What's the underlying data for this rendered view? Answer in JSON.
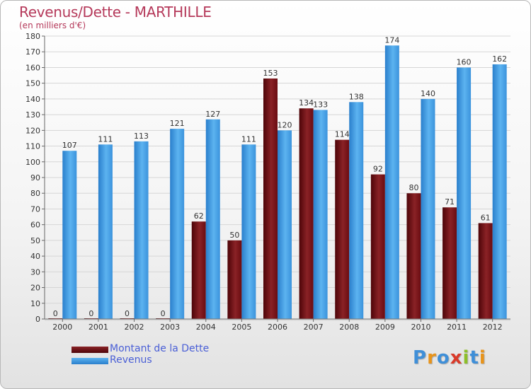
{
  "header": {
    "title": "Revenus/Dette - MARTHILLE",
    "subtitle": "(en milliers d'€)"
  },
  "legend": {
    "items": [
      {
        "label": "Montant de la Dette",
        "color": "#6d0f14"
      },
      {
        "label": "Revenus",
        "color": "#3b9ae0"
      }
    ]
  },
  "logo": {
    "letters": [
      {
        "ch": "P",
        "color": "#3f8fd8"
      },
      {
        "ch": "r",
        "color": "#e8941b"
      },
      {
        "ch": "o",
        "color": "#3f8fd8"
      },
      {
        "ch": "x",
        "color": "#d93a2a"
      },
      {
        "ch": "i",
        "color": "#8dbf2a"
      },
      {
        "ch": "t",
        "color": "#3f8fd8"
      },
      {
        "ch": "i",
        "color": "#e8941b"
      }
    ]
  },
  "chart_data": {
    "type": "bar",
    "title": "Revenus/Dette - MARTHILLE",
    "subtitle": "(en milliers d'€)",
    "categories": [
      "2000",
      "2001",
      "2002",
      "2003",
      "2004",
      "2005",
      "2006",
      "2007",
      "2008",
      "2009",
      "2010",
      "2011",
      "2012"
    ],
    "series": [
      {
        "name": "Montant de la Dette",
        "values": [
          0,
          0,
          0,
          0,
          62,
          50,
          153,
          134,
          114,
          92,
          80,
          71,
          61
        ],
        "color": "#6d0f14"
      },
      {
        "name": "Revenus",
        "values": [
          107,
          111,
          113,
          121,
          127,
          111,
          120,
          133,
          138,
          174,
          140,
          160,
          162
        ],
        "color": "#3b9ae0"
      }
    ],
    "ylim": [
      0,
      180
    ],
    "yticks": [
      0,
      10,
      20,
      30,
      40,
      50,
      60,
      70,
      80,
      90,
      100,
      110,
      120,
      130,
      140,
      150,
      160,
      170,
      180
    ],
    "grid": true,
    "legend_position": "bottom-left"
  }
}
